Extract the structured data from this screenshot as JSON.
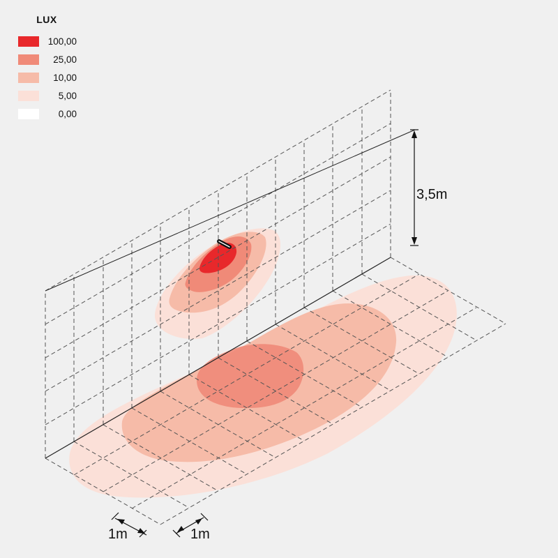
{
  "legend": {
    "title": "LUX",
    "items": [
      {
        "value": "100,00",
        "color": "#e8282b"
      },
      {
        "value": "25,00",
        "color": "#f08a78"
      },
      {
        "value": "10,00",
        "color": "#f6bba8"
      },
      {
        "value": "5,00",
        "color": "#fbe0d8"
      },
      {
        "value": "0,00",
        "color": "#ffffff"
      }
    ]
  },
  "dimensions": {
    "height_label": "3,5m",
    "grid_unit_label_1": "1m",
    "grid_unit_label_2": "1m"
  },
  "colors": {
    "background": "#f0f0f0",
    "grid_line": "#555555",
    "luminaire": "#111111"
  }
}
